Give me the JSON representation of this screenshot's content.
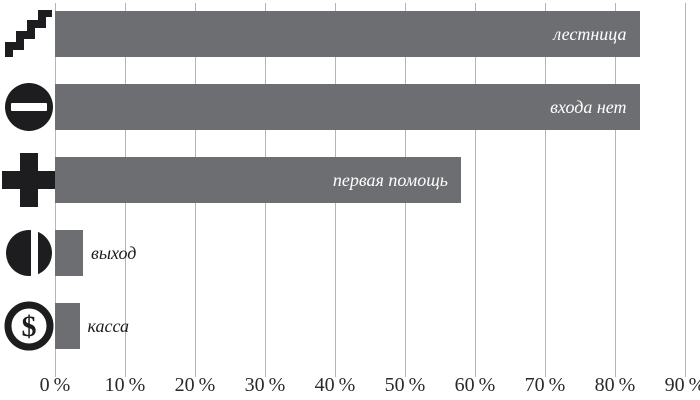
{
  "chart_data": {
    "type": "bar",
    "orientation": "horizontal",
    "title": "",
    "xlabel": "",
    "ylabel": "",
    "categories": [
      "лестница",
      "входа нет",
      "первая помощь",
      "выход",
      "касса"
    ],
    "values": [
      83.5,
      83.5,
      58,
      4,
      3.5
    ],
    "unit": "%",
    "icons": [
      "stairs-icon",
      "no-entry-icon",
      "first-aid-cross-icon",
      "exit-door-icon",
      "dollar-sign-icon"
    ],
    "label_placement": [
      "inside",
      "inside",
      "inside",
      "outside",
      "outside"
    ],
    "xlim": [
      0,
      90
    ],
    "x_ticks": [
      0,
      10,
      20,
      30,
      40,
      50,
      60,
      70,
      80,
      90
    ],
    "x_tick_labels": [
      "0 %",
      "10 %",
      "20 %",
      "30 %",
      "40 %",
      "50 %",
      "60 %",
      "70 %",
      "80 %",
      "90 %"
    ],
    "grid": "vertical",
    "legend": "none",
    "colors": {
      "bar": "#6d6e71",
      "gridline": "#b5b5b5",
      "axis_text": "#2a2a2a",
      "icon": "#1d1d1f",
      "inside_label": "#ffffff",
      "outside_label": "#1d1d1f"
    }
  }
}
